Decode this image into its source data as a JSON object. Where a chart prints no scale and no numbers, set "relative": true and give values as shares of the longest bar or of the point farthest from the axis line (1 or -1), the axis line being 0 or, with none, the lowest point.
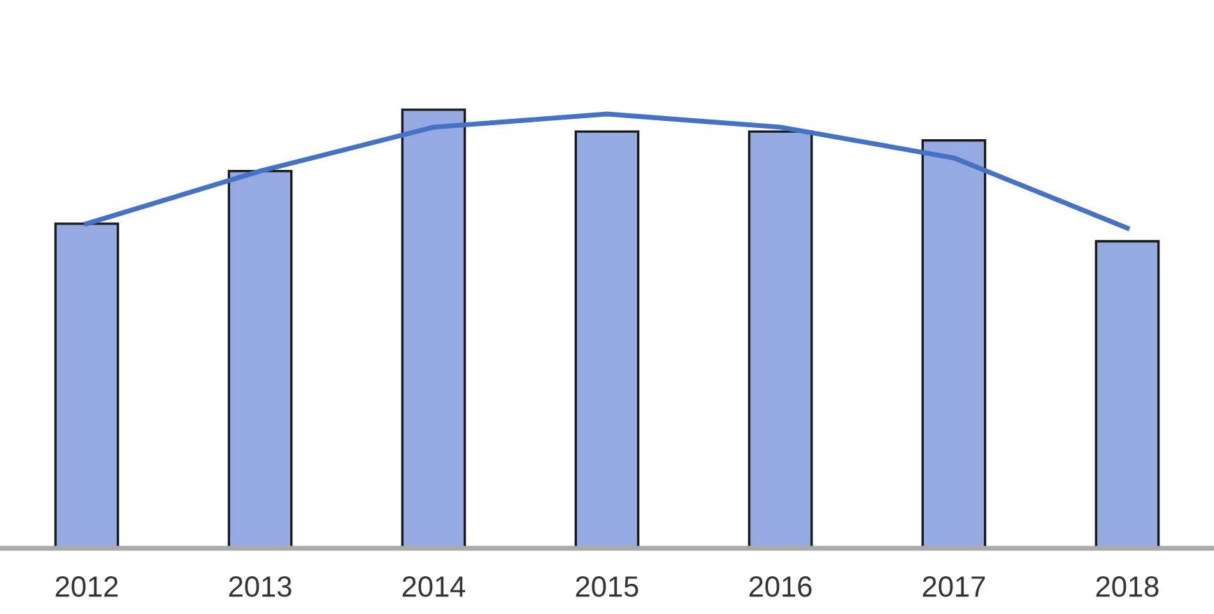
{
  "chart_data": {
    "type": "bar",
    "relative": true,
    "categories": [
      "2012",
      "2013",
      "2014",
      "2015",
      "2016",
      "2017",
      "2018"
    ],
    "series": [
      {
        "color": "#94aae0",
        "values": [
          0.74,
          0.86,
          1,
          0.95,
          0.95,
          0.93,
          0.7
        ]
      },
      {
        "type": "line",
        "color": "#4472c4",
        "values": [
          0.74,
          0.86,
          0.96,
          0.99,
          0.96,
          0.89,
          0.73
        ]
      }
    ],
    "grid": false,
    "legend": false
  }
}
